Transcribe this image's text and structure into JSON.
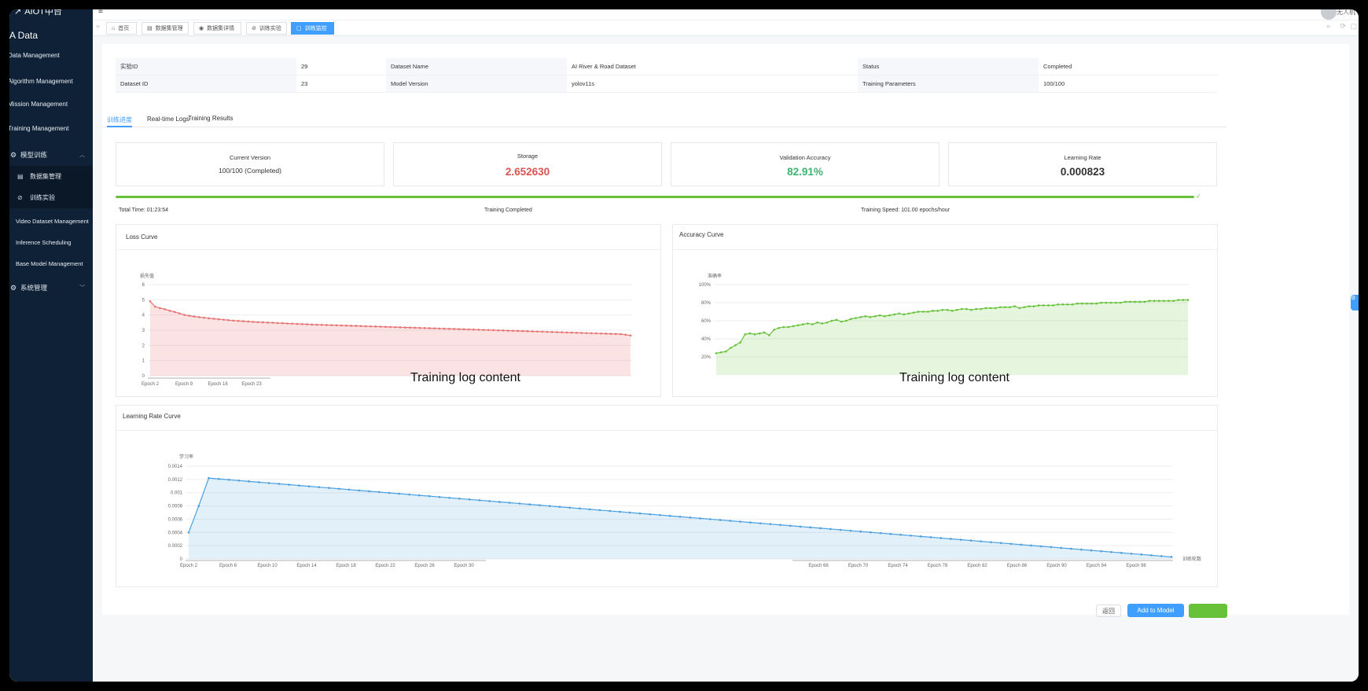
{
  "app": {
    "logo_text": "AIOT中台",
    "brand": "A Data",
    "user": "无人机"
  },
  "sidebar": {
    "items": [
      {
        "label": "Data Management"
      },
      {
        "label": "Algorithm Management"
      },
      {
        "label": "Mission Management"
      },
      {
        "label": "Training Management"
      }
    ],
    "group_model": {
      "label": "模型训练"
    },
    "sub_items": [
      {
        "label": "数据集管理"
      },
      {
        "label": "训练实验"
      }
    ],
    "plain_items": [
      {
        "label": "Video Dataset Management"
      },
      {
        "label": "Inference Scheduling"
      },
      {
        "label": "Base Model Management"
      }
    ],
    "group_system": {
      "label": "系统管理"
    }
  },
  "tabs": [
    {
      "label": "首页"
    },
    {
      "label": "数据集管理"
    },
    {
      "label": "数据集详情"
    },
    {
      "label": "训练实验"
    },
    {
      "label": "训练监控"
    }
  ],
  "info": {
    "exp_id_label": "实验ID",
    "exp_id": "29",
    "dataset_name_label": "Dataset Name",
    "dataset_name": "AI River & Road Dataset",
    "status_label": "Status",
    "status": "Completed",
    "dataset_id_label": "Dataset ID",
    "dataset_id": "23",
    "model_version_label": "Model Version",
    "model_version": "yolov11s",
    "train_params_label": "Training Parameters",
    "train_params": "100/100"
  },
  "page_tabs": [
    {
      "label": "训练进度"
    },
    {
      "label": "Real-time Logs"
    },
    {
      "label": "Training Results"
    }
  ],
  "stats": {
    "current_version_label": "Current Version",
    "current_version": "100/100 (Completed)",
    "storage_label": "Storage",
    "storage": "2.652630",
    "val_acc_label": "Validation Accuracy",
    "val_acc": "82.91%",
    "lr_label": "Learning Rate",
    "lr": "0.000823"
  },
  "progress": {
    "percent": 100,
    "total_time": "Total Time: 01:23:54",
    "status": "Training Completed",
    "speed": "Training Speed: 101.00 epochs/hour"
  },
  "overlay": {
    "left": "Training log content",
    "right": "Training log content"
  },
  "colors": {
    "loss": "#e57373",
    "accuracy": "#67c23a",
    "lr": "#4a9fde",
    "primary": "#409eff",
    "storage": "#d9534f",
    "val": "#3cb371"
  },
  "chart_data": [
    {
      "type": "area",
      "title": "Loss Curve",
      "ylabel": "损失值",
      "ylim": [
        0,
        6
      ],
      "yticks": [
        "0",
        "1",
        "2",
        "3",
        "4",
        "5",
        "6"
      ],
      "xticks_visible": [
        "Epoch 2",
        "Epoch 9",
        "Epoch 16",
        "Epoch 23"
      ],
      "x_range": [
        2,
        100
      ],
      "values": [
        4.9,
        4.55,
        4.45,
        4.38,
        4.28,
        4.2,
        4.1,
        4.0,
        3.95,
        3.9,
        3.86,
        3.82,
        3.78,
        3.75,
        3.72,
        3.69,
        3.66,
        3.63,
        3.61,
        3.59,
        3.57,
        3.55,
        3.53,
        3.52,
        3.5,
        3.49,
        3.47,
        3.46,
        3.44,
        3.43,
        3.41,
        3.4,
        3.39,
        3.37,
        3.36,
        3.35,
        3.34,
        3.33,
        3.32,
        3.31,
        3.3,
        3.29,
        3.28,
        3.27,
        3.26,
        3.25,
        3.24,
        3.23,
        3.22,
        3.21,
        3.2,
        3.19,
        3.18,
        3.17,
        3.16,
        3.15,
        3.14,
        3.13,
        3.12,
        3.11,
        3.1,
        3.09,
        3.08,
        3.07,
        3.06,
        3.05,
        3.04,
        3.03,
        3.02,
        3.01,
        3.0,
        2.99,
        2.98,
        2.97,
        2.96,
        2.95,
        2.94,
        2.93,
        2.92,
        2.91,
        2.9,
        2.89,
        2.88,
        2.87,
        2.86,
        2.85,
        2.84,
        2.83,
        2.82,
        2.81,
        2.8,
        2.79,
        2.78,
        2.77,
        2.76,
        2.75,
        2.74,
        2.7,
        2.65
      ]
    },
    {
      "type": "area",
      "title": "Accuracy Curve",
      "ylabel": "准确率",
      "ylim": [
        0,
        100
      ],
      "yticks": [
        "20%",
        "40%",
        "60%",
        "80%",
        "100%"
      ],
      "x_range": [
        2,
        100
      ],
      "values": [
        24,
        25,
        26,
        30,
        33,
        36,
        45,
        46,
        45,
        46,
        47,
        44,
        50,
        52,
        53,
        53,
        54,
        55,
        56,
        57,
        56,
        58,
        57,
        58,
        60,
        61,
        59,
        60,
        62,
        63,
        64,
        65,
        64,
        65,
        66,
        65,
        66,
        67,
        68,
        67,
        68,
        69,
        70,
        70,
        70,
        71,
        71,
        72,
        72,
        71,
        72,
        73,
        73,
        72,
        73,
        73,
        74,
        74,
        74,
        75,
        75,
        75,
        76,
        74,
        75,
        76,
        76,
        77,
        77,
        77,
        77,
        78,
        78,
        78,
        78,
        79,
        79,
        79,
        79,
        79,
        80,
        80,
        80,
        80,
        80,
        81,
        81,
        81,
        81,
        81,
        82,
        82,
        82,
        82,
        82,
        82,
        83,
        83,
        83
      ]
    },
    {
      "type": "area",
      "title": "Learning Rate Curve",
      "ylabel": "学习率",
      "xlabel": "训练轮数",
      "ylim": [
        0,
        0.0014
      ],
      "yticks": [
        "0",
        "0.0002",
        "0.0004",
        "0.0006",
        "0.0008",
        "0.001",
        "0.0012",
        "0.0014"
      ],
      "xticks_left": [
        "Epoch 2",
        "Epoch 6",
        "Epoch 10",
        "Epoch 14",
        "Epoch 18",
        "Epoch 22",
        "Epoch 26",
        "Epoch 30"
      ],
      "xticks_right": [
        "Epoch 66",
        "Epoch 70",
        "Epoch 74",
        "Epoch 78",
        "Epoch 82",
        "Epoch 86",
        "Epoch 90",
        "Epoch 94",
        "Epoch 98"
      ],
      "x_range": [
        2,
        100
      ],
      "warmup": [
        0.0004,
        0.0008,
        0.00122
      ],
      "peak": 0.00122,
      "final": 3e-05
    }
  ],
  "buttons": {
    "back": "返回",
    "add_to_model": "Add to Model",
    "extra": ""
  }
}
